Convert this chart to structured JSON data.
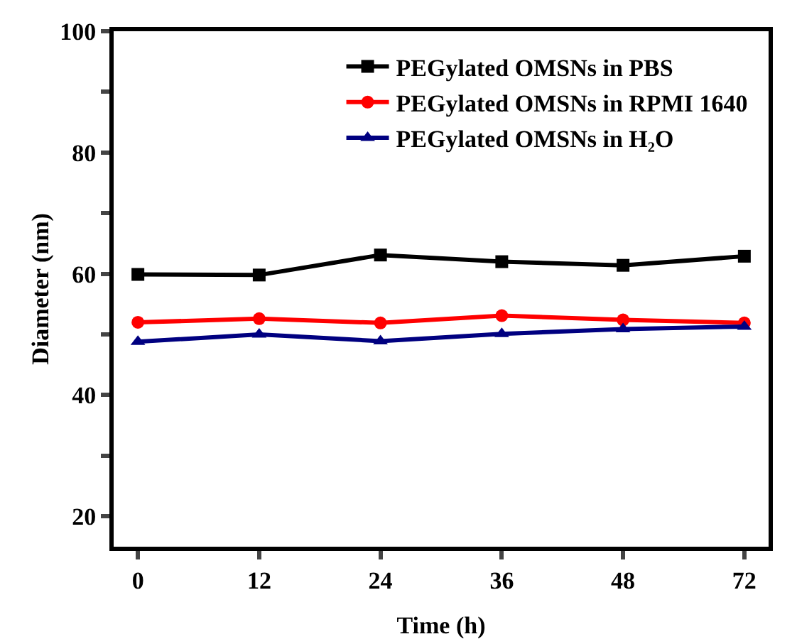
{
  "chart_data": {
    "type": "line",
    "xlabel": "Time (h)",
    "ylabel": "Diameter (nm)",
    "categories": [
      "0",
      "12",
      "24",
      "36",
      "48",
      "72"
    ],
    "ylim": [
      15,
      100
    ],
    "yticks": [
      20,
      {
        "value": 30,
        "label": null
      },
      40,
      {
        "value": 50,
        "label": null
      },
      60,
      {
        "value": 70,
        "label": null
      },
      80,
      {
        "value": 90,
        "label": null
      },
      100
    ],
    "grid": false,
    "legend": "top right",
    "line_style": "solid",
    "series": [
      {
        "name": "PEGylated OMSNs in PBS",
        "color": "#000000",
        "marker": "square",
        "values": [
          59.9,
          59.8,
          63.1,
          62.0,
          61.4,
          62.9
        ]
      },
      {
        "name": "PEGylated OMSNs in RPMI 1640",
        "color": "#ff0000",
        "marker": "circle",
        "values": [
          52.0,
          52.6,
          51.9,
          53.1,
          52.4,
          51.9
        ]
      },
      {
        "name": "PEGylated OMSNs in H₂O",
        "color": "#000080",
        "marker": "triangle",
        "values": [
          48.8,
          50.0,
          48.9,
          50.1,
          50.9,
          51.3
        ]
      }
    ]
  }
}
